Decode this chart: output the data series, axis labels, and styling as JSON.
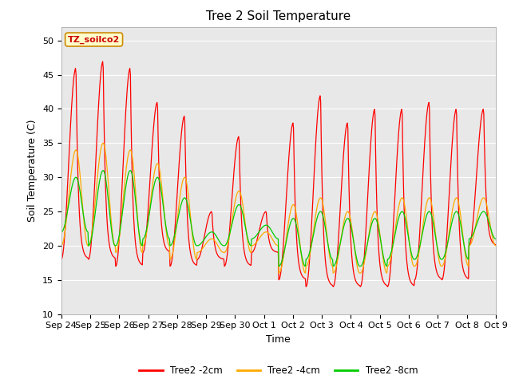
{
  "title": "Tree 2 Soil Temperature",
  "ylabel": "Soil Temperature (C)",
  "xlabel": "Time",
  "subtitle_box": "TZ_soilco2",
  "ylim": [
    10,
    52
  ],
  "yticks": [
    10,
    15,
    20,
    25,
    30,
    35,
    40,
    45,
    50
  ],
  "xtick_labels": [
    "Sep 24",
    "Sep 25",
    "Sep 26",
    "Sep 27",
    "Sep 28",
    "Sep 29",
    "Sep 30",
    "Oct 1",
    "Oct 2",
    "Oct 3",
    "Oct 4",
    "Oct 5",
    "Oct 6",
    "Oct 7",
    "Oct 8",
    "Oct 9"
  ],
  "bg_color": "#e8e8e8",
  "fig_bg": "#ffffff",
  "line_colors": [
    "#ff0000",
    "#ffaa00",
    "#00cc00"
  ],
  "line_labels": [
    "Tree2 -2cm",
    "Tree2 -4cm",
    "Tree2 -8cm"
  ],
  "title_fontsize": 11,
  "axis_label_fontsize": 9,
  "tick_fontsize": 8
}
